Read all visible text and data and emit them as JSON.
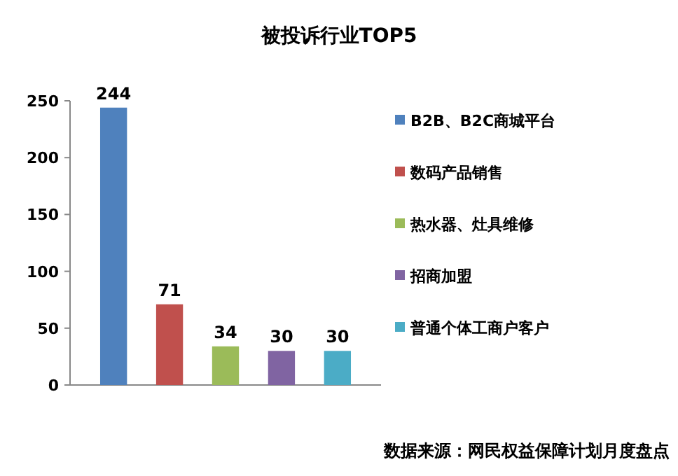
{
  "chart_data": {
    "type": "bar",
    "title": "被投诉行业TOP5",
    "categories": [
      null
    ],
    "series": [
      {
        "name": "B2B、B2C商城平台",
        "color": "#4f81bd",
        "values": [
          244
        ]
      },
      {
        "name": "数码产品销售",
        "color": "#c0504d",
        "values": [
          71
        ]
      },
      {
        "name": "热水器、灶具维修",
        "color": "#9bbb59",
        "values": [
          34
        ]
      },
      {
        "name": "招商加盟",
        "color": "#8064a2",
        "values": [
          30
        ]
      },
      {
        "name": "普通个体工商户客户",
        "color": "#4bacc6",
        "values": [
          30
        ]
      }
    ],
    "ylim": [
      0,
      250
    ],
    "yticks": [
      0,
      50,
      100,
      150,
      200,
      250
    ],
    "data_labels": true,
    "legend": "right",
    "grid": false,
    "annotations": [
      "数据来源：网民权益保障计划月度盘点"
    ]
  }
}
